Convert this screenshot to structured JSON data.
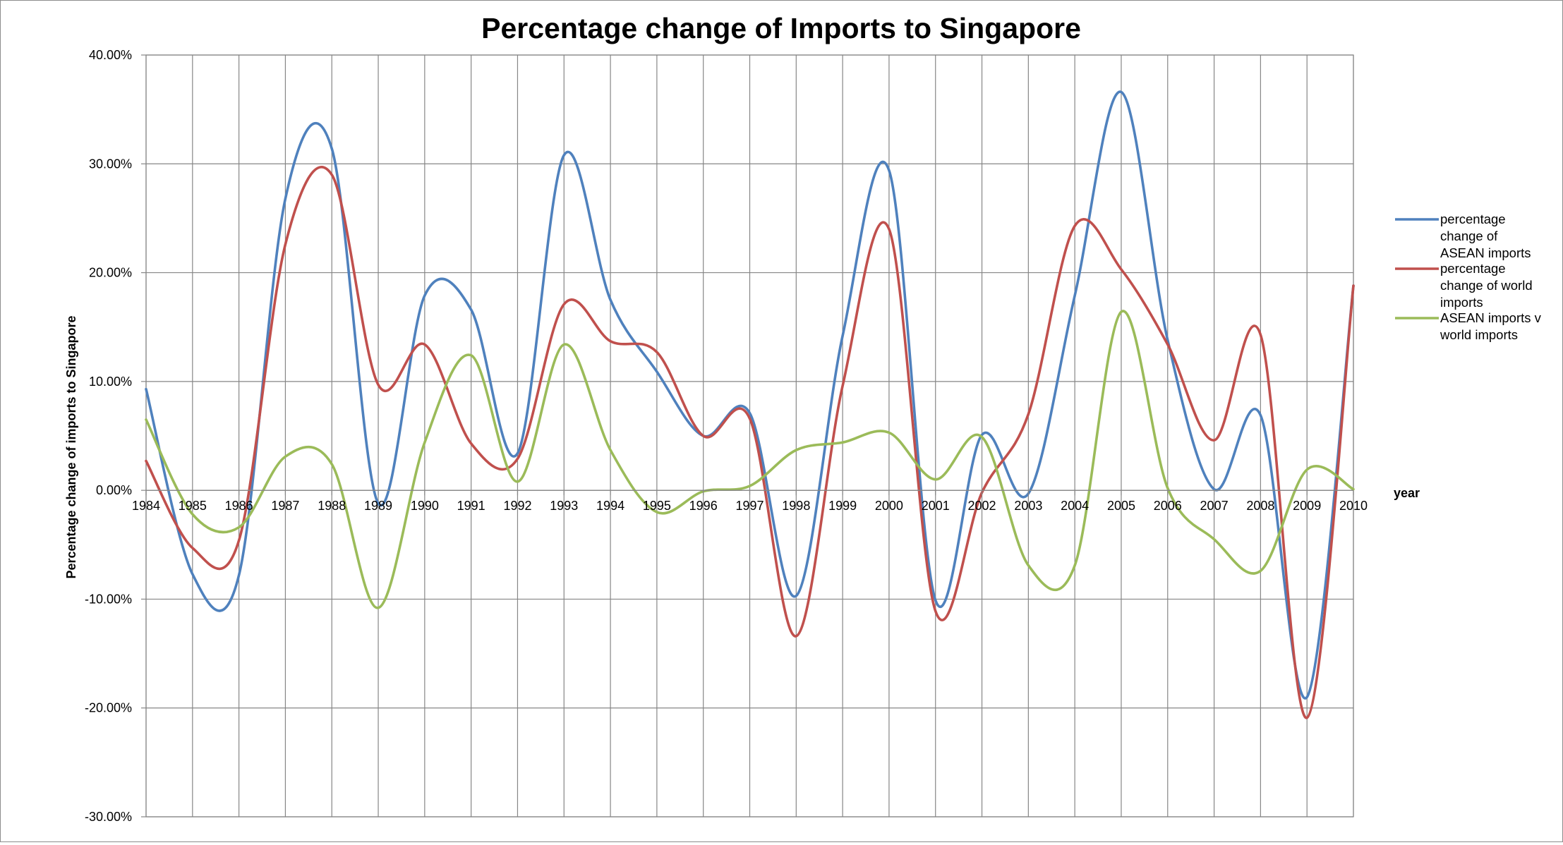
{
  "chart_data": {
    "type": "line",
    "title": "Percentage change of Imports to Singapore",
    "xlabel": "year",
    "ylabel": "Percentage change of imports to Singapore",
    "categories": [
      "1984",
      "1985",
      "1986",
      "1987",
      "1988",
      "1989",
      "1990",
      "1991",
      "1992",
      "1993",
      "1994",
      "1995",
      "1996",
      "1997",
      "1998",
      "1999",
      "2000",
      "2001",
      "2002",
      "2003",
      "2004",
      "2005",
      "2006",
      "2007",
      "2008",
      "2009",
      "2010"
    ],
    "ylim": [
      -0.3,
      0.4
    ],
    "ytick_values": [
      -0.3,
      -0.2,
      -0.1,
      0.0,
      0.1,
      0.2,
      0.3,
      0.4
    ],
    "ytick_labels": [
      "-30.00%",
      "-20.00%",
      "-10.00%",
      "0.00%",
      "10.00%",
      "20.00%",
      "30.00%",
      "40.00%"
    ],
    "grid": true,
    "smoothed_lines": true,
    "legend_position": "right",
    "series": [
      {
        "name": "percentage change of ASEAN imports",
        "legend_lines": [
          "percentage",
          "change of",
          "ASEAN imports"
        ],
        "color": "#4F81BD",
        "values": [
          0.093,
          -0.077,
          -0.078,
          0.268,
          0.314,
          -0.012,
          0.179,
          0.166,
          0.034,
          0.308,
          0.175,
          0.109,
          0.05,
          0.071,
          -0.097,
          0.142,
          0.294,
          -0.101,
          0.051,
          -0.003,
          0.179,
          0.366,
          0.138,
          0.001,
          0.069,
          -0.19,
          0.188
        ]
      },
      {
        "name": "percentage change of world imports",
        "legend_lines": [
          "percentage",
          "change of world",
          "imports"
        ],
        "color": "#C0504D",
        "values": [
          0.027,
          -0.053,
          -0.046,
          0.226,
          0.29,
          0.097,
          0.134,
          0.043,
          0.029,
          0.171,
          0.137,
          0.127,
          0.05,
          0.066,
          -0.134,
          0.096,
          0.24,
          -0.111,
          -0.002,
          0.07,
          0.243,
          0.203,
          0.134,
          0.046,
          0.143,
          -0.209,
          0.188
        ]
      },
      {
        "name": "ASEAN imports v world imports",
        "legend_lines": [
          "ASEAN imports v",
          "world imports"
        ],
        "color": "#9BBB59",
        "values": [
          0.065,
          -0.022,
          -0.034,
          0.031,
          0.024,
          -0.108,
          0.044,
          0.124,
          0.008,
          0.134,
          0.037,
          -0.02,
          -0.001,
          0.004,
          0.037,
          0.044,
          0.053,
          0.01,
          0.049,
          -0.069,
          -0.069,
          0.164,
          0.002,
          -0.045,
          -0.074,
          0.019,
          0.001
        ]
      }
    ]
  }
}
